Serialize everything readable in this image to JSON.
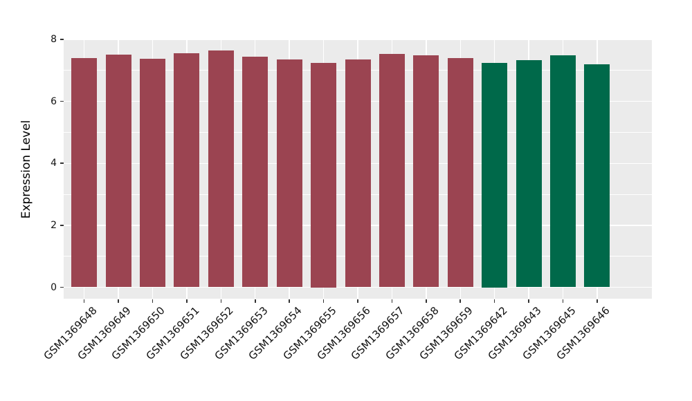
{
  "style": {
    "figure_background": "#FFFFFF",
    "panel_background": "#EBEBEB",
    "grid_color": "#FFFFFF",
    "tick_mark_color": "#333333",
    "text_color": "#111111",
    "bar_color_maroon": "#9B4451",
    "bar_color_green": "#00694A"
  },
  "chart_data": {
    "type": "bar",
    "title": "",
    "xlabel": "",
    "ylabel": "Expression Level",
    "ylim": [
      0,
      8
    ],
    "yticks": [
      0,
      2,
      4,
      6,
      8
    ],
    "grid": "white major and minor horizontal gridlines plus vertical gridlines at bar centers on gray panel",
    "legend": false,
    "x_label_rotation_deg": -45,
    "categories": [
      "GSM1369648",
      "GSM1369649",
      "GSM1369650",
      "GSM1369651",
      "GSM1369652",
      "GSM1369653",
      "GSM1369654",
      "GSM1369655",
      "GSM1369656",
      "GSM1369657",
      "GSM1369658",
      "GSM1369659",
      "GSM1369642",
      "GSM1369643",
      "GSM1369645",
      "GSM1369646"
    ],
    "values": [
      7.4,
      7.51,
      7.37,
      7.55,
      7.64,
      7.44,
      7.35,
      7.25,
      7.35,
      7.54,
      7.49,
      7.4,
      7.25,
      7.33,
      7.49,
      7.19
    ],
    "bar_colors": [
      "#9B4451",
      "#9B4451",
      "#9B4451",
      "#9B4451",
      "#9B4451",
      "#9B4451",
      "#9B4451",
      "#9B4451",
      "#9B4451",
      "#9B4451",
      "#9B4451",
      "#9B4451",
      "#00694A",
      "#00694A",
      "#00694A",
      "#00694A"
    ]
  }
}
